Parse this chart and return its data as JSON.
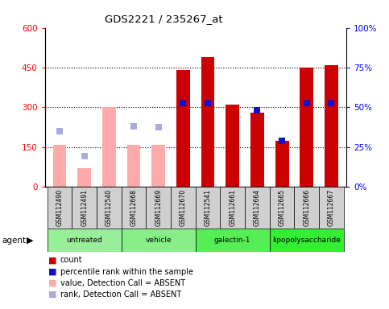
{
  "title": "GDS2221 / 235267_at",
  "samples": [
    "GSM112490",
    "GSM112491",
    "GSM112540",
    "GSM112668",
    "GSM112669",
    "GSM112670",
    "GSM112541",
    "GSM112661",
    "GSM112664",
    "GSM112665",
    "GSM112666",
    "GSM112667"
  ],
  "groups": [
    {
      "label": "untreated",
      "color": "#99ee99",
      "indices": [
        0,
        1,
        2
      ]
    },
    {
      "label": "vehicle",
      "color": "#88ee88",
      "indices": [
        3,
        4,
        5
      ]
    },
    {
      "label": "galectin-1",
      "color": "#55ee55",
      "indices": [
        6,
        7,
        8
      ]
    },
    {
      "label": "lipopolysaccharide",
      "color": "#33ee33",
      "indices": [
        9,
        10,
        11
      ]
    }
  ],
  "absent_flags": [
    true,
    true,
    true,
    true,
    true,
    false,
    false,
    false,
    false,
    false,
    false,
    false
  ],
  "bar_values": [
    160,
    70,
    300,
    160,
    160,
    440,
    490,
    310,
    280,
    175,
    450,
    460
  ],
  "rank_sq_values": [
    210,
    115,
    null,
    230,
    225,
    315,
    315,
    null,
    290,
    175,
    315,
    315
  ],
  "bar_color_present": "#cc0000",
  "bar_color_absent": "#ffaaaa",
  "rank_color_present": "#1111cc",
  "rank_color_absent": "#aaaadd",
  "ylim_left": [
    0,
    600
  ],
  "ylim_right": [
    0,
    100
  ],
  "yticks_left": [
    0,
    150,
    300,
    450,
    600
  ],
  "yticks_right": [
    0,
    25,
    50,
    75,
    100
  ],
  "ytick_labels_left": [
    "0",
    "150",
    "300",
    "450",
    "600"
  ],
  "ytick_labels_right": [
    "0%",
    "25%",
    "50%",
    "75%",
    "100%"
  ],
  "bar_width": 0.55,
  "legend_items": [
    {
      "color": "#cc0000",
      "label": "count"
    },
    {
      "color": "#1111cc",
      "label": "percentile rank within the sample"
    },
    {
      "color": "#ffaaaa",
      "label": "value, Detection Call = ABSENT"
    },
    {
      "color": "#aaaadd",
      "label": "rank, Detection Call = ABSENT"
    }
  ]
}
